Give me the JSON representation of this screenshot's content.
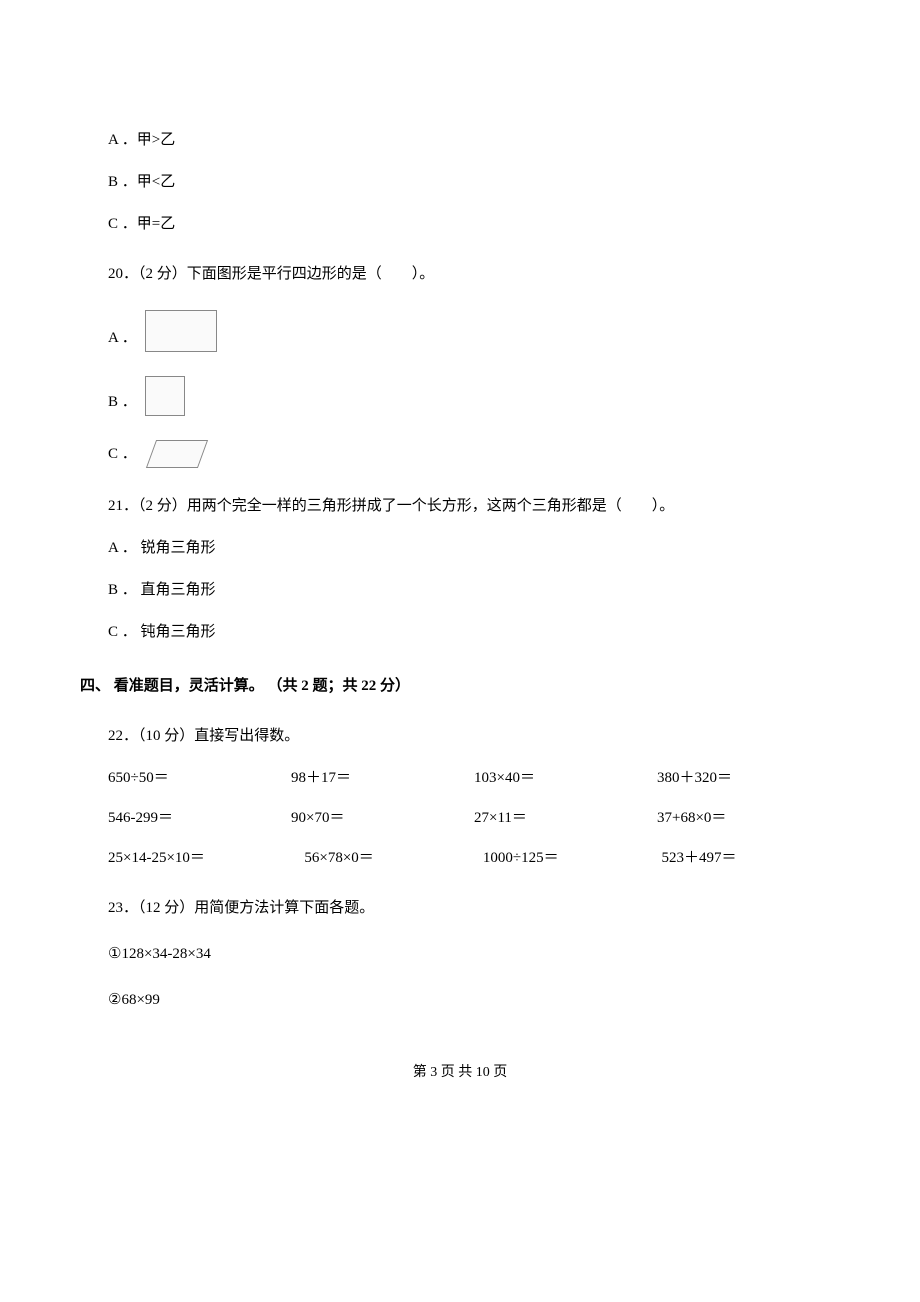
{
  "q19_options": {
    "a": "A ．甲>乙",
    "b": "B ．甲<乙",
    "c": "C ．甲=乙"
  },
  "q20": {
    "text": "20．（2 分）下面图形是平行四边形的是（　　）。",
    "options": {
      "a": "A ．",
      "b": "B ．",
      "c": "C ．"
    }
  },
  "q21": {
    "text": "21．（2 分）用两个完全一样的三角形拼成了一个长方形，这两个三角形都是（　　）。",
    "options": {
      "a": "A ． 锐角三角形",
      "b": "B ． 直角三角形",
      "c": "C ． 钝角三角形"
    }
  },
  "section4": {
    "header": "四、 看准题目，灵活计算。 （共 2 题；共 22 分）"
  },
  "q22": {
    "text": "22．（10 分）直接写出得数。",
    "row1": {
      "c1": "650÷50＝",
      "c2": "98＋17＝",
      "c3": "103×40＝",
      "c4": "380＋320＝"
    },
    "row2": {
      "c1": "546-299＝",
      "c2": "90×70＝",
      "c3": "27×11＝",
      "c4": "37+68×0＝"
    },
    "row3": {
      "c1": "25×14-25×10＝",
      "c2": "56×78×0＝",
      "c3": "1000÷125＝",
      "c4": "523＋497＝"
    }
  },
  "q23": {
    "text": "23．（12 分）用简便方法计算下面各题。",
    "items": {
      "i1": "①128×34-28×34",
      "i2": "②68×99"
    }
  },
  "footer": "第 3 页 共 10 页"
}
